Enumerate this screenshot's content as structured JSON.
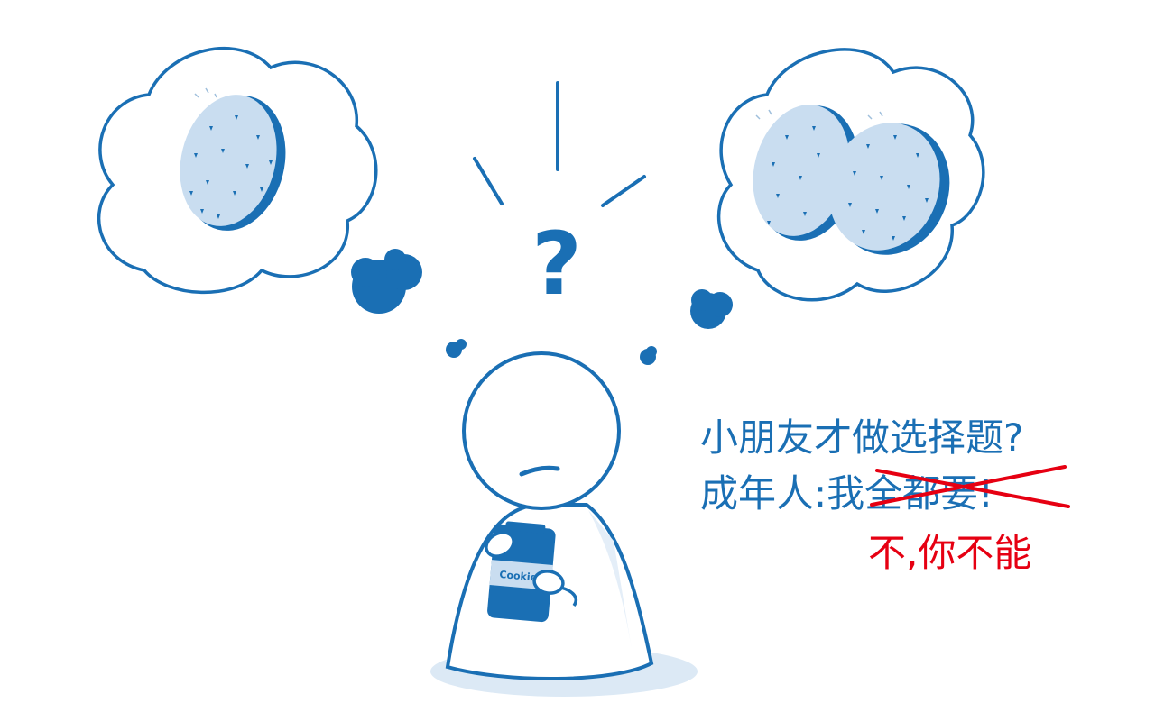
{
  "caption": {
    "question": "小朋友才做选择题?",
    "adult_prefix": "成年人:",
    "want_all": "我全都要!",
    "reply": "不,你不能"
  },
  "jar": {
    "label": "Cookies"
  },
  "thought_mark": "?",
  "colors": {
    "primary_blue": "#1a6fb4",
    "cookie_fill": "#c9ddf0",
    "shadow": "#dce9f5",
    "strike_red": "#e60012"
  }
}
